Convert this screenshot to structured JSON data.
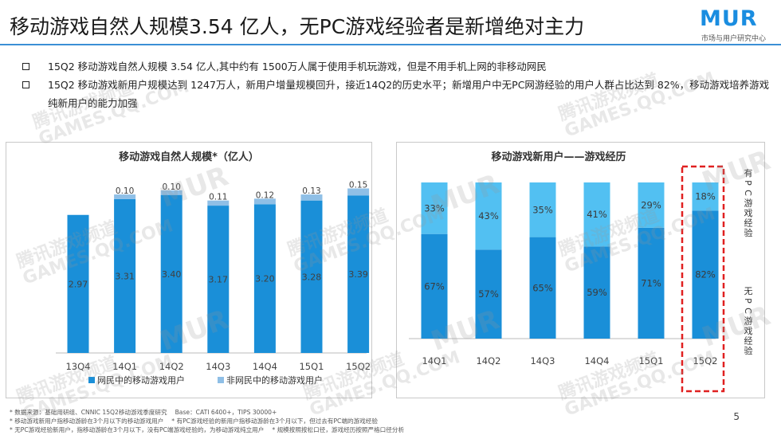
{
  "page": {
    "title": "移动游戏自然人规模3.54 亿人，无PC游戏经验者是新增绝对主力",
    "logo": {
      "word": "MUR",
      "sub": "市场与用户研究中心"
    },
    "bullets": [
      "15Q2 移动游戏自然人规模 3.54 亿人,其中约有 1500万人属于使用手机玩游戏，但是不用手机上网的非移动网民",
      "15Q2 移动游戏新用户规模达到 1247万人，新用户增量规模回升，接近14Q2的历史水平；新增用户中无PC网游经验的用户人群占比达到 82%，移动游戏培养游戏纯新用户的能力加强"
    ],
    "footnotes": [
      [
        "* 数据来源：基础用研组、CNNIC 15Q2移动游戏季度研究",
        "Base：CATI 6400+，TIPS 30000+"
      ],
      [
        "* 移动游戏新用户指移动游龄在3个月以下的移动游戏用户",
        "* 有PC游戏经验的新用户指移动游龄在3个月以下，但过去有PC端的游戏经验"
      ],
      [
        "* 无PC游戏经验新用户，指移动游龄在3个月以下，没有PC端游戏经验的，为移动游戏纯立用户",
        "* 规模按照按松口径，游戏经历按照严格口径分析"
      ]
    ],
    "page_number": "5",
    "watermarks": {
      "mur": "MUR",
      "mur_sub": "市场与用户研究中心",
      "tencent": "腾讯游戏频道",
      "games": "GAMES.QQ.COM"
    }
  },
  "chart_data": [
    {
      "type": "bar",
      "stacked": true,
      "title": "移动游戏自然人规模*（亿人）",
      "categories": [
        "13Q4",
        "14Q1",
        "14Q2",
        "14Q3",
        "14Q4",
        "15Q1",
        "15Q2"
      ],
      "series": [
        {
          "name": "网民中的移动游戏用户",
          "values": [
            2.97,
            3.31,
            3.4,
            3.17,
            3.2,
            3.28,
            3.39
          ],
          "labels": [
            "2.97",
            "3.31",
            "3.40",
            "3.17",
            "3.20",
            "3.28",
            "3.39"
          ],
          "color": "#1a8fd8"
        },
        {
          "name": "非网民中的移动游戏用户",
          "values": [
            null,
            0.1,
            0.1,
            0.11,
            0.12,
            0.13,
            0.15
          ],
          "labels": [
            "",
            "0.10",
            "0.10",
            "0.11",
            "0.12",
            "0.13",
            "0.15"
          ],
          "color": "#8fbfe6"
        }
      ],
      "ylim": [
        0,
        3.6
      ],
      "grid": false,
      "legend": "bottom"
    },
    {
      "type": "bar",
      "stacked": true,
      "percent": true,
      "title": "移动游戏新用户——游戏经历",
      "categories": [
        "14Q1",
        "14Q2",
        "14Q3",
        "14Q4",
        "15Q1",
        "15Q2"
      ],
      "series": [
        {
          "name": "无PC游戏经验",
          "values": [
            67,
            57,
            65,
            59,
            71,
            82
          ],
          "labels": [
            "67%",
            "57%",
            "65%",
            "59%",
            "71%",
            "82%"
          ],
          "color": "#1a8fd8"
        },
        {
          "name": "有PC游戏经验",
          "values": [
            33,
            43,
            35,
            41,
            29,
            18
          ],
          "labels": [
            "33%",
            "43%",
            "35%",
            "41%",
            "29%",
            "18%"
          ],
          "color": "#52c0f2"
        }
      ],
      "ylim": [
        0,
        100
      ],
      "grid": false,
      "legend": "right"
    }
  ]
}
